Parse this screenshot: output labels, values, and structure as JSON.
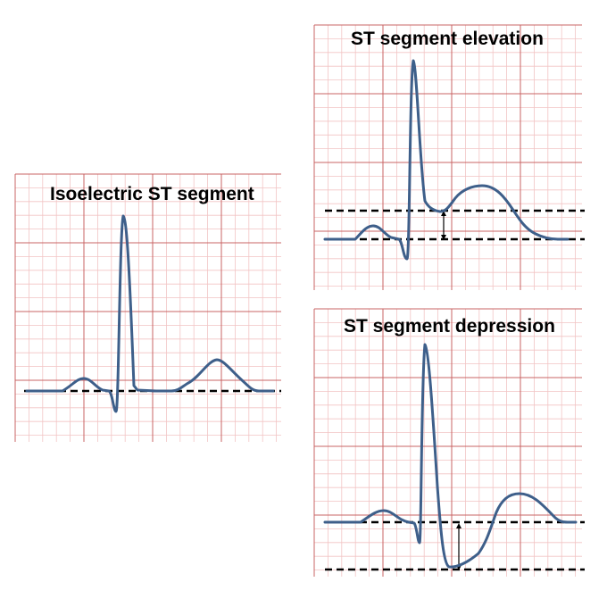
{
  "panels": {
    "isoelectric": {
      "title": "Isoelectric ST segment"
    },
    "elevation": {
      "title": "ST segment elevation"
    },
    "depression": {
      "title": "ST segment depression"
    }
  },
  "colors": {
    "minor_grid": "#f2c4c4",
    "major_grid": "#c86464",
    "waveform": "#3e5f8a",
    "baseline": "#000000",
    "arrow": "#000000"
  }
}
